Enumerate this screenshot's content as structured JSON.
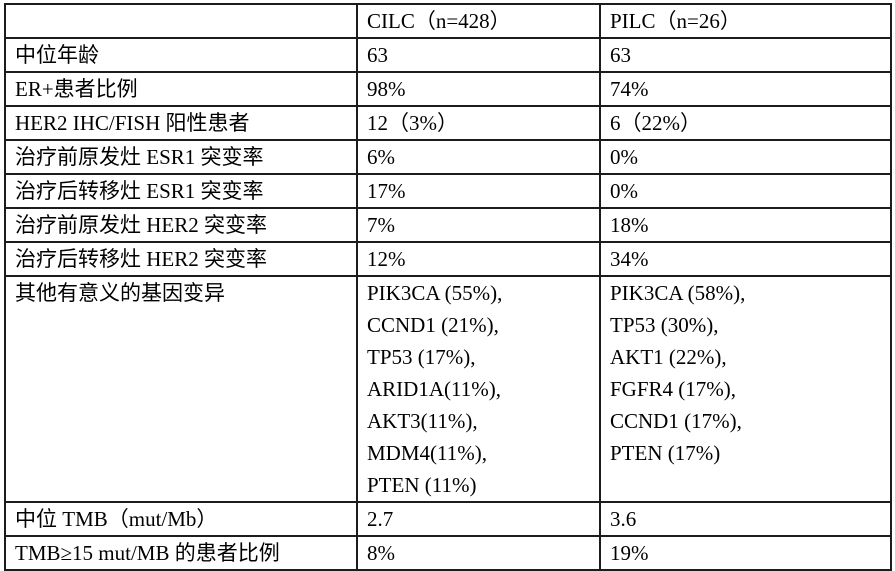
{
  "table": {
    "header": {
      "cols": [
        "",
        "CILC（n=428）",
        "PILC（n=26）"
      ]
    },
    "rows": [
      {
        "label": "中位年龄",
        "values": [
          "63",
          "63"
        ]
      },
      {
        "label": "ER+患者比例",
        "values": [
          "98%",
          "74%"
        ]
      },
      {
        "label": "HER2 IHC/FISH 阳性患者",
        "values": [
          "12（3%）",
          "6（22%）"
        ]
      },
      {
        "label": "治疗前原发灶 ESR1 突变率",
        "values": [
          "6%",
          "0%"
        ]
      },
      {
        "label": "治疗后转移灶 ESR1 突变率",
        "values": [
          "17%",
          "0%"
        ]
      },
      {
        "label": "治疗前原发灶 HER2 突变率",
        "values": [
          "7%",
          "18%"
        ]
      },
      {
        "label": "治疗后转移灶 HER2 突变率",
        "values": [
          "12%",
          "34%"
        ]
      },
      {
        "label": "其他有意义的基因变异",
        "values": [
          "PIK3CA (55%),\nCCND1 (21%),\nTP53 (17%),\nARID1A(11%),\nAKT3(11%),\nMDM4(11%),\nPTEN (11%)",
          "PIK3CA (58%),\nTP53 (30%),\nAKT1 (22%),\nFGFR4 (17%),\nCCND1 (17%),\nPTEN (17%)"
        ]
      },
      {
        "label": "中位 TMB（mut/Mb）",
        "values": [
          "2.7",
          "3.6"
        ]
      },
      {
        "label": "TMB≥15 mut/MB 的患者比例",
        "values": [
          "8%",
          "19%"
        ]
      }
    ]
  }
}
